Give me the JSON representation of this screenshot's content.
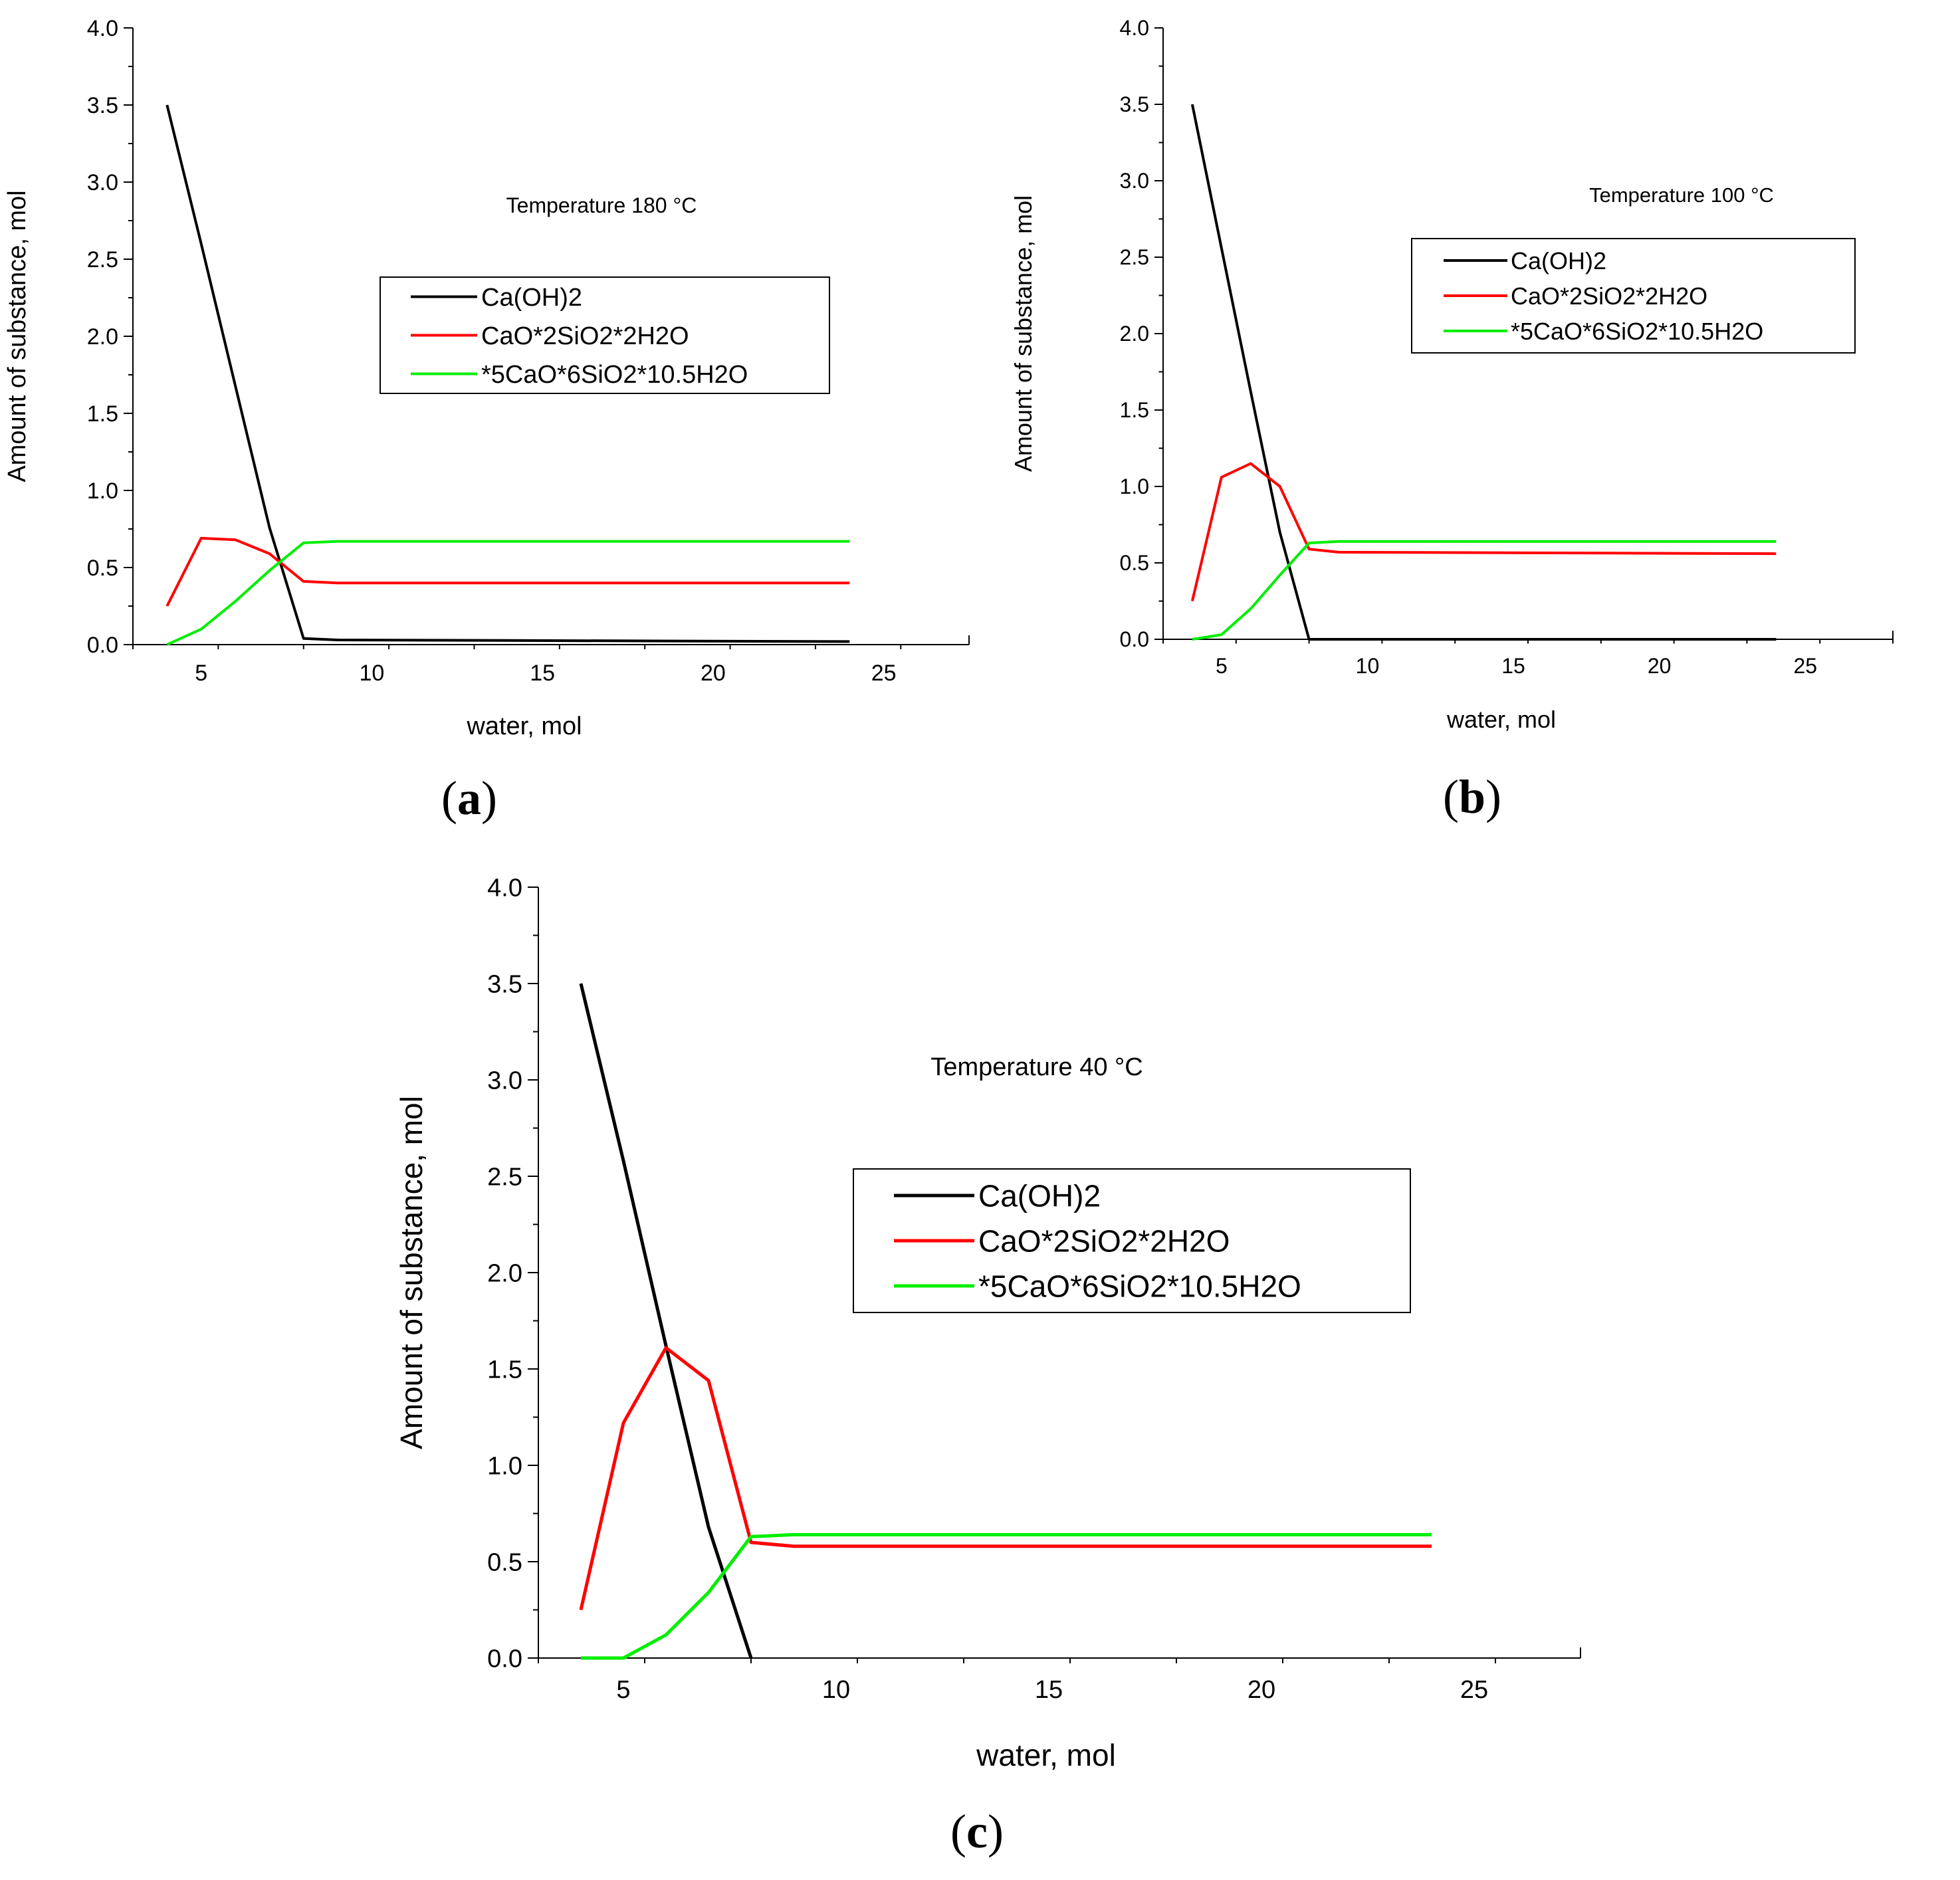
{
  "chart_data": [
    {
      "id": "a",
      "type": "line",
      "panel_label_open": "(",
      "panel_label_letter": "a",
      "panel_label_close": ")",
      "annotation": "Temperature 180 °C",
      "xlabel": "water, mol",
      "ylabel": "Amount of substance, mol",
      "xlim": [
        3,
        27.5
      ],
      "ylim": [
        0,
        4
      ],
      "xticks": [
        5,
        10,
        15,
        20,
        25
      ],
      "yticks": [
        0.0,
        0.5,
        1.0,
        1.5,
        2.0,
        2.5,
        3.0,
        3.5,
        4.0
      ],
      "ytick_labels": [
        "0.0",
        "0.5",
        "1.0",
        "1.5",
        "2.0",
        "2.5",
        "3.0",
        "3.5",
        "4.0"
      ],
      "legend_position": "upper-right",
      "series": [
        {
          "name": "Ca(OH)2",
          "color": "#000000",
          "x": [
            4,
            5,
            6,
            7,
            8,
            9,
            24
          ],
          "y": [
            3.5,
            2.6,
            1.68,
            0.76,
            0.04,
            0.03,
            0.02
          ]
        },
        {
          "name": "CaO*2SiO2*2H2O",
          "color": "#ff0000",
          "x": [
            4,
            5,
            6,
            7,
            8,
            9,
            24
          ],
          "y": [
            0.25,
            0.69,
            0.68,
            0.59,
            0.41,
            0.4,
            0.4
          ]
        },
        {
          "name": "*5CaO*6SiO2*10.5H2O",
          "color": "#00ee00",
          "x": [
            4,
            5,
            6,
            7,
            8,
            9,
            24
          ],
          "y": [
            0.0,
            0.1,
            0.28,
            0.48,
            0.66,
            0.67,
            0.67
          ]
        }
      ]
    },
    {
      "id": "b",
      "type": "line",
      "panel_label_open": "(",
      "panel_label_letter": "b",
      "panel_label_close": ")",
      "annotation": "Temperature 100 °C",
      "xlabel": "water, mol",
      "ylabel": "Amount of substance, mol",
      "xlim": [
        3,
        28
      ],
      "ylim": [
        0,
        4
      ],
      "xticks": [
        5,
        10,
        15,
        20,
        25
      ],
      "yticks": [
        0.0,
        0.5,
        1.0,
        1.5,
        2.0,
        2.5,
        3.0,
        3.5,
        4.0
      ],
      "ytick_labels": [
        "0.0",
        "0.5",
        "1.0",
        "1.5",
        "2.0",
        "2.5",
        "3.0",
        "3.5",
        "4.0"
      ],
      "legend_position": "upper-right",
      "series": [
        {
          "name": "Ca(OH)2",
          "color": "#000000",
          "x": [
            4,
            5,
            6,
            7,
            8,
            9,
            24
          ],
          "y": [
            3.5,
            2.56,
            1.62,
            0.7,
            0.0,
            0.0,
            0.0
          ]
        },
        {
          "name": "CaO*2SiO2*2H2O",
          "color": "#ff0000",
          "x": [
            4,
            5,
            6,
            7,
            8,
            9,
            24
          ],
          "y": [
            0.25,
            1.06,
            1.15,
            1.0,
            0.59,
            0.57,
            0.56
          ]
        },
        {
          "name": "*5CaO*6SiO2*10.5H2O",
          "color": "#00ee00",
          "x": [
            4,
            5,
            6,
            7,
            8,
            9,
            24
          ],
          "y": [
            0.0,
            0.03,
            0.2,
            0.42,
            0.63,
            0.64,
            0.64
          ]
        }
      ]
    },
    {
      "id": "c",
      "type": "line",
      "panel_label_open": "(",
      "panel_label_letter": "c",
      "panel_label_close": ")",
      "annotation": "Temperature 40 °C",
      "xlabel": "water, mol",
      "ylabel": "Amount of substance, mol",
      "xlim": [
        3,
        27.5
      ],
      "ylim": [
        0,
        4
      ],
      "xticks": [
        5,
        10,
        15,
        20,
        25
      ],
      "yticks": [
        0.0,
        0.5,
        1.0,
        1.5,
        2.0,
        2.5,
        3.0,
        3.5,
        4.0
      ],
      "ytick_labels": [
        "0.0",
        "0.5",
        "1.0",
        "1.5",
        "2.0",
        "2.5",
        "3.0",
        "3.5",
        "4.0"
      ],
      "legend_position": "upper-right",
      "series": [
        {
          "name": "Ca(OH)2",
          "color": "#000000",
          "x": [
            4,
            5,
            6,
            7,
            8
          ],
          "y": [
            3.5,
            2.58,
            1.62,
            0.68,
            0.0
          ]
        },
        {
          "name": "CaO*2SiO2*2H2O",
          "color": "#ff0000",
          "x": [
            4,
            5,
            6,
            7,
            8,
            9,
            24
          ],
          "y": [
            0.25,
            1.22,
            1.61,
            1.44,
            0.6,
            0.58,
            0.58
          ]
        },
        {
          "name": "*5CaO*6SiO2*10.5H2O",
          "color": "#00ee00",
          "x": [
            4,
            5,
            6,
            7,
            8,
            9,
            24
          ],
          "y": [
            0.0,
            0.0,
            0.12,
            0.34,
            0.63,
            0.64,
            0.64
          ]
        }
      ]
    }
  ]
}
